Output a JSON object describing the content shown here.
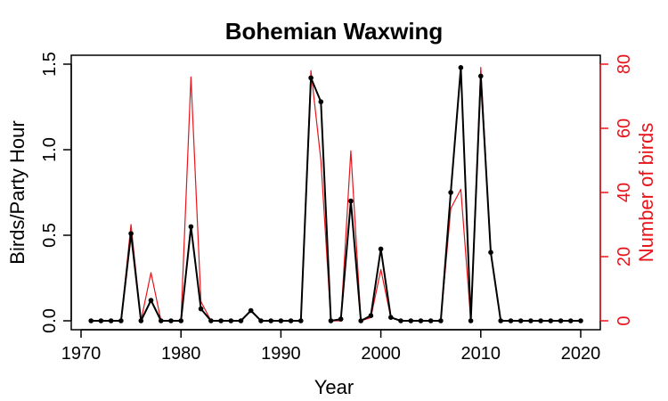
{
  "chart_data": {
    "type": "line",
    "title": "Bohemian Waxwing",
    "xlabel": "Year",
    "ylabel": "Birds/Party Hour",
    "y2label": "Number of birds",
    "xlim": [
      1970,
      2020
    ],
    "ylim": [
      0,
      1.5
    ],
    "y2lim": [
      0,
      80
    ],
    "x_ticks": [
      1970,
      1980,
      1990,
      2000,
      2010,
      2020
    ],
    "y_ticks": [
      "0.0",
      "0.5",
      "1.0",
      "1.5"
    ],
    "y2_ticks": [
      "0",
      "20",
      "40",
      "60",
      "80"
    ],
    "grid": false,
    "colors": {
      "primary": "#000000",
      "secondary": "#e8141c"
    },
    "x": [
      1971,
      1972,
      1973,
      1974,
      1975,
      1976,
      1977,
      1978,
      1979,
      1980,
      1981,
      1982,
      1983,
      1984,
      1985,
      1986,
      1987,
      1988,
      1989,
      1990,
      1991,
      1992,
      1993,
      1994,
      1995,
      1996,
      1997,
      1998,
      1999,
      2000,
      2001,
      2002,
      2003,
      2004,
      2005,
      2006,
      2007,
      2008,
      2009,
      2010,
      2011,
      2012,
      2013,
      2014,
      2015,
      2016,
      2017,
      2018,
      2019,
      2020
    ],
    "series": [
      {
        "name": "Birds/Party Hour",
        "axis": "left",
        "markers": true,
        "values": [
          0,
          0,
          0,
          0,
          0.51,
          0,
          0.12,
          0,
          0,
          0,
          0.55,
          0.07,
          0,
          0,
          0,
          0,
          0.06,
          0,
          0,
          0,
          0,
          0,
          1.42,
          1.28,
          0,
          0.01,
          0.7,
          0,
          0.03,
          0.42,
          0.02,
          0,
          0,
          0,
          0,
          0,
          0.75,
          1.48,
          0,
          1.43,
          0.4,
          0,
          0,
          0,
          0,
          0,
          0,
          0,
          0,
          0
        ]
      },
      {
        "name": "Number of birds",
        "axis": "right",
        "markers": false,
        "values": [
          0,
          0,
          0,
          0,
          30,
          0,
          15,
          0,
          0,
          0,
          76,
          6,
          0,
          0,
          0,
          0,
          3,
          0,
          0,
          0,
          0,
          0,
          78,
          50,
          0,
          0,
          53,
          0,
          1,
          16,
          1,
          0,
          0,
          0,
          0,
          0,
          35,
          41,
          0,
          79,
          21,
          0,
          0,
          0,
          0,
          0,
          0,
          0,
          0,
          0
        ]
      }
    ]
  }
}
